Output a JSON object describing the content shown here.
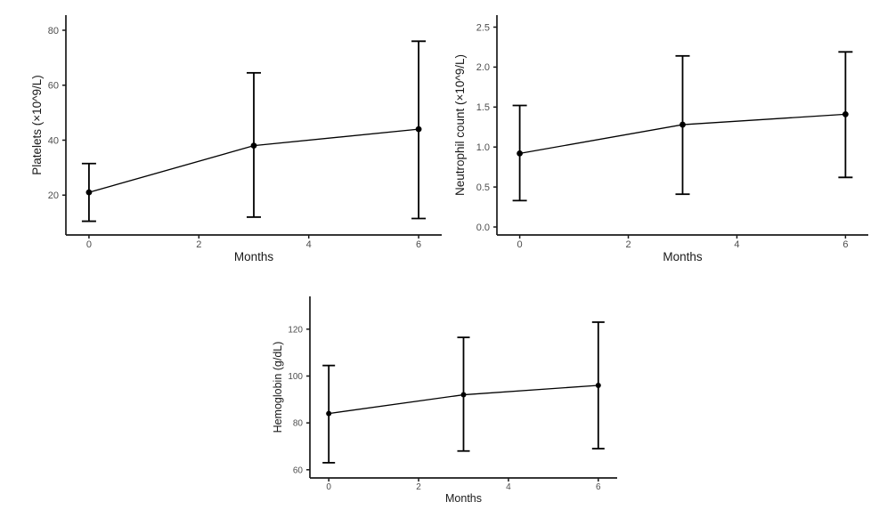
{
  "figure": {
    "background": "#ffffff",
    "axis_color": "#1a1a1a",
    "tick_label_color": "#4d4d4d",
    "axis_title_color": "#1a1a1a",
    "series_color": "#000000",
    "panel_count": 3
  },
  "chart_data": [
    {
      "id": "platelets",
      "type": "line",
      "subtype": "mean-with-errorbars",
      "title": "",
      "xlabel": "Months",
      "ylabel": "Platelets (×10^9/L)",
      "x": [
        0,
        3,
        6
      ],
      "mean": [
        21,
        38,
        44
      ],
      "lower": [
        10.5,
        12,
        11.5
      ],
      "upper": [
        31.5,
        64.5,
        76
      ],
      "xticks": [
        0,
        2,
        4,
        6
      ],
      "xtick_labels": [
        "0",
        "2",
        "4",
        "6"
      ],
      "yticks": [
        20,
        40,
        60,
        80
      ],
      "ytick_labels": [
        "20",
        "40",
        "60",
        "80"
      ],
      "xlim": [
        -0.42,
        6.42
      ],
      "ylim": [
        5.5,
        85.5
      ],
      "grid": false,
      "legend": "none"
    },
    {
      "id": "neutrophil-count",
      "type": "line",
      "subtype": "mean-with-errorbars",
      "title": "",
      "xlabel": "Months",
      "ylabel": "Neutrophil count (×10^9/L)",
      "x": [
        0,
        3,
        6
      ],
      "mean": [
        0.92,
        1.28,
        1.41
      ],
      "lower": [
        0.33,
        0.41,
        0.62
      ],
      "upper": [
        1.52,
        2.14,
        2.19
      ],
      "xticks": [
        0,
        2,
        4,
        6
      ],
      "xtick_labels": [
        "0",
        "2",
        "4",
        "6"
      ],
      "yticks": [
        0.0,
        0.5,
        1.0,
        1.5,
        2.0,
        2.5
      ],
      "ytick_labels": [
        "0.0",
        "0.5",
        "1.0",
        "1.5",
        "2.0",
        "2.5"
      ],
      "xlim": [
        -0.42,
        6.42
      ],
      "ylim": [
        -0.1,
        2.65
      ],
      "grid": false,
      "legend": "none"
    },
    {
      "id": "hemoglobin",
      "type": "line",
      "subtype": "mean-with-errorbars",
      "title": "",
      "xlabel": "Months",
      "ylabel": "Hemoglobin (g/dL)",
      "x": [
        0,
        3,
        6
      ],
      "mean": [
        84,
        92,
        96
      ],
      "lower": [
        63,
        68,
        69
      ],
      "upper": [
        104.5,
        116.5,
        123
      ],
      "xticks": [
        0,
        2,
        4,
        6
      ],
      "xtick_labels": [
        "0",
        "2",
        "4",
        "6"
      ],
      "yticks": [
        60,
        80,
        100,
        120
      ],
      "ytick_labels": [
        "60",
        "80",
        "100",
        "120"
      ],
      "xlim": [
        -0.42,
        6.42
      ],
      "ylim": [
        56.5,
        134
      ],
      "grid": false,
      "legend": "none"
    }
  ]
}
